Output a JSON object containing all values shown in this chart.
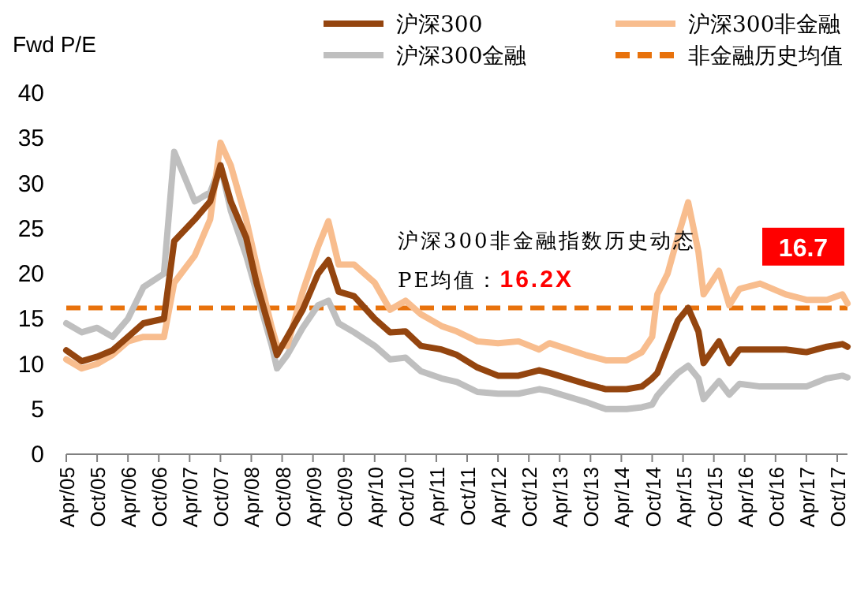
{
  "chart_data": {
    "type": "line",
    "ylabel": "Fwd P/E",
    "legend": "top",
    "x": [
      "2005-04",
      "2005-07",
      "2005-10",
      "2006-01",
      "2006-04",
      "2006-07",
      "2006-11",
      "2007-01",
      "2007-05",
      "2007-08",
      "2007-10",
      "2007-12",
      "2008-03",
      "2008-05",
      "2008-08",
      "2008-09",
      "2008-11",
      "2009-02",
      "2009-05",
      "2009-07",
      "2009-09",
      "2009-12",
      "2010-04",
      "2010-07",
      "2010-10",
      "2011-01",
      "2011-05",
      "2011-08",
      "2011-12",
      "2012-04",
      "2012-08",
      "2012-12",
      "2013-02",
      "2013-09",
      "2014-01",
      "2014-05",
      "2014-08",
      "2014-10",
      "2014-11",
      "2015-01",
      "2015-03",
      "2015-05",
      "2015-07",
      "2015-08",
      "2015-11",
      "2016-01",
      "2016-03",
      "2016-07",
      "2016-12",
      "2017-04",
      "2017-08",
      "2017-11",
      "2017-12"
    ],
    "series": [
      {
        "name": "沪深300",
        "color": "#94450f",
        "values": [
          11.5,
          10.3,
          10.8,
          11.5,
          13,
          14.5,
          15,
          23.6,
          26,
          28,
          32,
          28,
          24,
          19,
          13,
          11,
          13,
          16,
          20,
          21.5,
          18,
          17.5,
          15,
          13.5,
          13.6,
          12,
          11.6,
          11,
          9.6,
          8.7,
          8.7,
          9.3,
          9,
          7.8,
          7.2,
          7.2,
          7.5,
          8.4,
          9,
          11.9,
          14.8,
          16.2,
          13.6,
          10.1,
          12.5,
          10.1,
          11.6,
          11.6,
          11.6,
          11.3,
          11.9,
          12.2,
          11.9
        ]
      },
      {
        "name": "沪深300非金融",
        "color": "#f8bd8e",
        "values": [
          10.5,
          9.5,
          10,
          11,
          12.5,
          13,
          13,
          19,
          22,
          26,
          34.5,
          32,
          26,
          21,
          14,
          12,
          12,
          18,
          23,
          25.8,
          21,
          21,
          19,
          16,
          17,
          15.5,
          14.2,
          13.6,
          12.5,
          12.3,
          12.5,
          11.6,
          12.3,
          11,
          10.4,
          10.4,
          11.3,
          13,
          17.7,
          20,
          24.1,
          27.9,
          22.4,
          17.7,
          20.3,
          16.5,
          18.3,
          18.9,
          17.7,
          17.1,
          17.1,
          17.7,
          16.7
        ]
      },
      {
        "name": "沪深300金融",
        "color": "#bfbfbf",
        "values": [
          14.5,
          13.5,
          14,
          13,
          15,
          18.5,
          20,
          33.5,
          28,
          29,
          32,
          27,
          22,
          18,
          12,
          9.5,
          11,
          14,
          16.5,
          17,
          14.5,
          13.5,
          12,
          10.5,
          10.7,
          9.2,
          8.4,
          8,
          6.9,
          6.7,
          6.7,
          7.2,
          7,
          5.8,
          5,
          5,
          5.2,
          5.5,
          6.5,
          7.8,
          9,
          9.8,
          8.4,
          6.1,
          8.1,
          6.6,
          7.8,
          7.5,
          7.5,
          7.5,
          8.4,
          8.7,
          8.5
        ]
      }
    ],
    "xlim": [
      "2005-04",
      "2017-12"
    ],
    "xticks": [
      {
        "value": "2005-04",
        "label": "Apr/05"
      },
      {
        "value": "2005-10",
        "label": "Oct/05"
      },
      {
        "value": "2006-04",
        "label": "Apr/06"
      },
      {
        "value": "2006-10",
        "label": "Oct/06"
      },
      {
        "value": "2007-04",
        "label": "Apr/07"
      },
      {
        "value": "2007-10",
        "label": "Oct/07"
      },
      {
        "value": "2008-04",
        "label": "Apr/08"
      },
      {
        "value": "2008-10",
        "label": "Oct/08"
      },
      {
        "value": "2009-04",
        "label": "Apr/09"
      },
      {
        "value": "2009-10",
        "label": "Oct/09"
      },
      {
        "value": "2010-04",
        "label": "Apr/10"
      },
      {
        "value": "2010-10",
        "label": "Oct/10"
      },
      {
        "value": "2011-04",
        "label": "Apr/11"
      },
      {
        "value": "2011-10",
        "label": "Oct/11"
      },
      {
        "value": "2012-04",
        "label": "Apr/12"
      },
      {
        "value": "2012-10",
        "label": "Oct/12"
      },
      {
        "value": "2013-04",
        "label": "Apr/13"
      },
      {
        "value": "2013-10",
        "label": "Oct/13"
      },
      {
        "value": "2014-04",
        "label": "Apr/14"
      },
      {
        "value": "2014-10",
        "label": "Oct/14"
      },
      {
        "value": "2015-04",
        "label": "Apr/15"
      },
      {
        "value": "2015-10",
        "label": "Oct/15"
      },
      {
        "value": "2016-04",
        "label": "Apr/16"
      },
      {
        "value": "2016-10",
        "label": "Oct/16"
      },
      {
        "value": "2017-04",
        "label": "Apr/17"
      },
      {
        "value": "2017-10",
        "label": "Oct/17"
      }
    ],
    "ylim": [
      0,
      40
    ],
    "yticks": [
      0,
      5,
      10,
      15,
      20,
      25,
      30,
      35,
      40
    ],
    "ref_lines": [
      {
        "axis": "y",
        "value": 16.2,
        "label": "非金融历史均值",
        "color": "#e8720c",
        "line_style": "dashed"
      }
    ],
    "annotations": [
      "沪深300非金融指数历史动态PE均值：**16.2X**",
      {
        "text": "16.7",
        "x": "2017-12",
        "y": 16.7
      }
    ]
  }
}
